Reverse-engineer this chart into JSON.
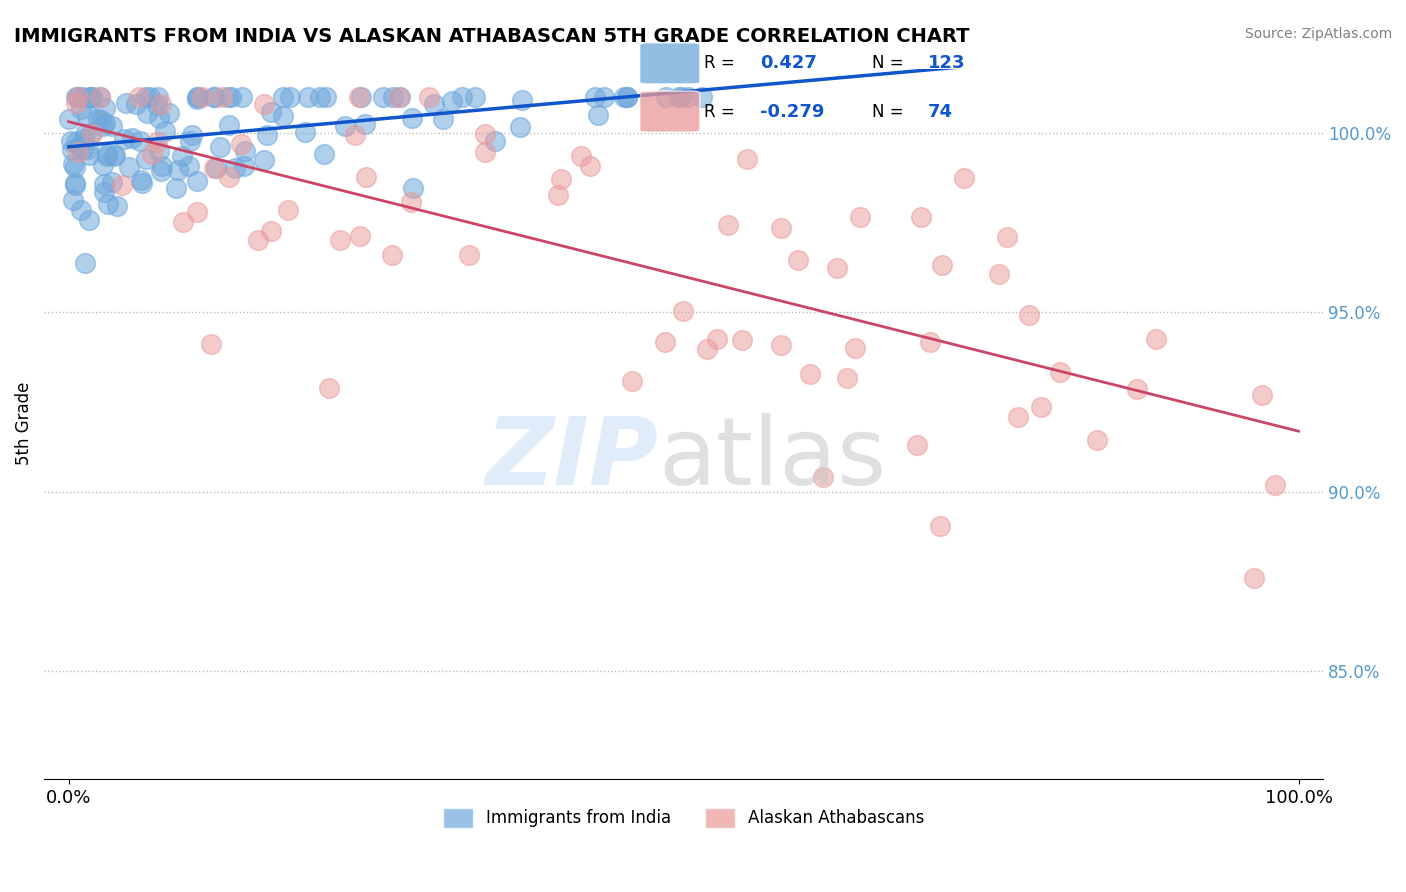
{
  "title": "IMMIGRANTS FROM INDIA VS ALASKAN ATHABASCAN 5TH GRADE CORRELATION CHART",
  "source": "Source: ZipAtlas.com",
  "ylabel": "5th Grade",
  "blue_R": 0.427,
  "blue_N": 123,
  "pink_R": -0.279,
  "pink_N": 74,
  "blue_color": "#6fa8dc",
  "pink_color": "#ea9999",
  "blue_line_color": "#1155cc",
  "pink_line_color": "#cc4466",
  "right_yticks": [
    85.0,
    90.0,
    95.0,
    100.0
  ],
  "legend_label_blue": "Immigrants from India",
  "legend_label_pink": "Alaskan Athabascans",
  "figsize": [
    14.06,
    8.92
  ],
  "dpi": 100
}
